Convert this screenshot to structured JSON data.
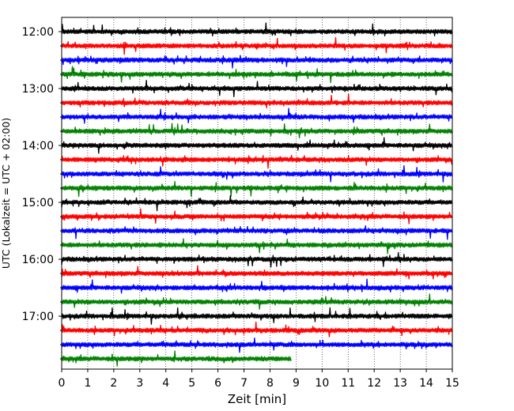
{
  "chart_data": {
    "type": "line",
    "title": "",
    "xlabel": "Zeit  [min]",
    "ylabel": "UTC (Lokalzeit = UTC + 02:00)",
    "xlim": [
      0,
      15
    ],
    "x_ticks": [
      "0",
      "1",
      "2",
      "3",
      "4",
      "5",
      "6",
      "7",
      "8",
      "9",
      "10",
      "11",
      "12",
      "13",
      "14",
      "15"
    ],
    "y_ticks": [
      "12:00",
      "13:00",
      "14:00",
      "15:00",
      "16:00",
      "17:00"
    ],
    "grid": "x-dotted",
    "trace_interval_min": 15,
    "colors": [
      "#000000",
      "#ff0000",
      "#0000ff",
      "#008000"
    ],
    "traces": [
      {
        "start": "12:00",
        "color": "#000000",
        "end_min": 15
      },
      {
        "start": "12:15",
        "color": "#ff0000",
        "end_min": 15
      },
      {
        "start": "12:30",
        "color": "#0000ff",
        "end_min": 15
      },
      {
        "start": "12:45",
        "color": "#008000",
        "end_min": 15
      },
      {
        "start": "13:00",
        "color": "#000000",
        "end_min": 15
      },
      {
        "start": "13:15",
        "color": "#ff0000",
        "end_min": 15
      },
      {
        "start": "13:30",
        "color": "#0000ff",
        "end_min": 15
      },
      {
        "start": "13:45",
        "color": "#008000",
        "end_min": 15
      },
      {
        "start": "14:00",
        "color": "#000000",
        "end_min": 15
      },
      {
        "start": "14:15",
        "color": "#ff0000",
        "end_min": 15
      },
      {
        "start": "14:30",
        "color": "#0000ff",
        "end_min": 15
      },
      {
        "start": "14:45",
        "color": "#008000",
        "end_min": 15
      },
      {
        "start": "15:00",
        "color": "#000000",
        "end_min": 15
      },
      {
        "start": "15:15",
        "color": "#ff0000",
        "end_min": 15
      },
      {
        "start": "15:30",
        "color": "#0000ff",
        "end_min": 15
      },
      {
        "start": "15:45",
        "color": "#008000",
        "end_min": 15
      },
      {
        "start": "16:00",
        "color": "#000000",
        "end_min": 15
      },
      {
        "start": "16:15",
        "color": "#ff0000",
        "end_min": 15
      },
      {
        "start": "16:30",
        "color": "#0000ff",
        "end_min": 15
      },
      {
        "start": "16:45",
        "color": "#008000",
        "end_min": 15
      },
      {
        "start": "17:00",
        "color": "#000000",
        "end_min": 15
      },
      {
        "start": "17:15",
        "color": "#ff0000",
        "end_min": 15
      },
      {
        "start": "17:30",
        "color": "#0000ff",
        "end_min": 15
      },
      {
        "start": "17:45",
        "color": "#008000",
        "end_min": 8.8
      }
    ]
  }
}
